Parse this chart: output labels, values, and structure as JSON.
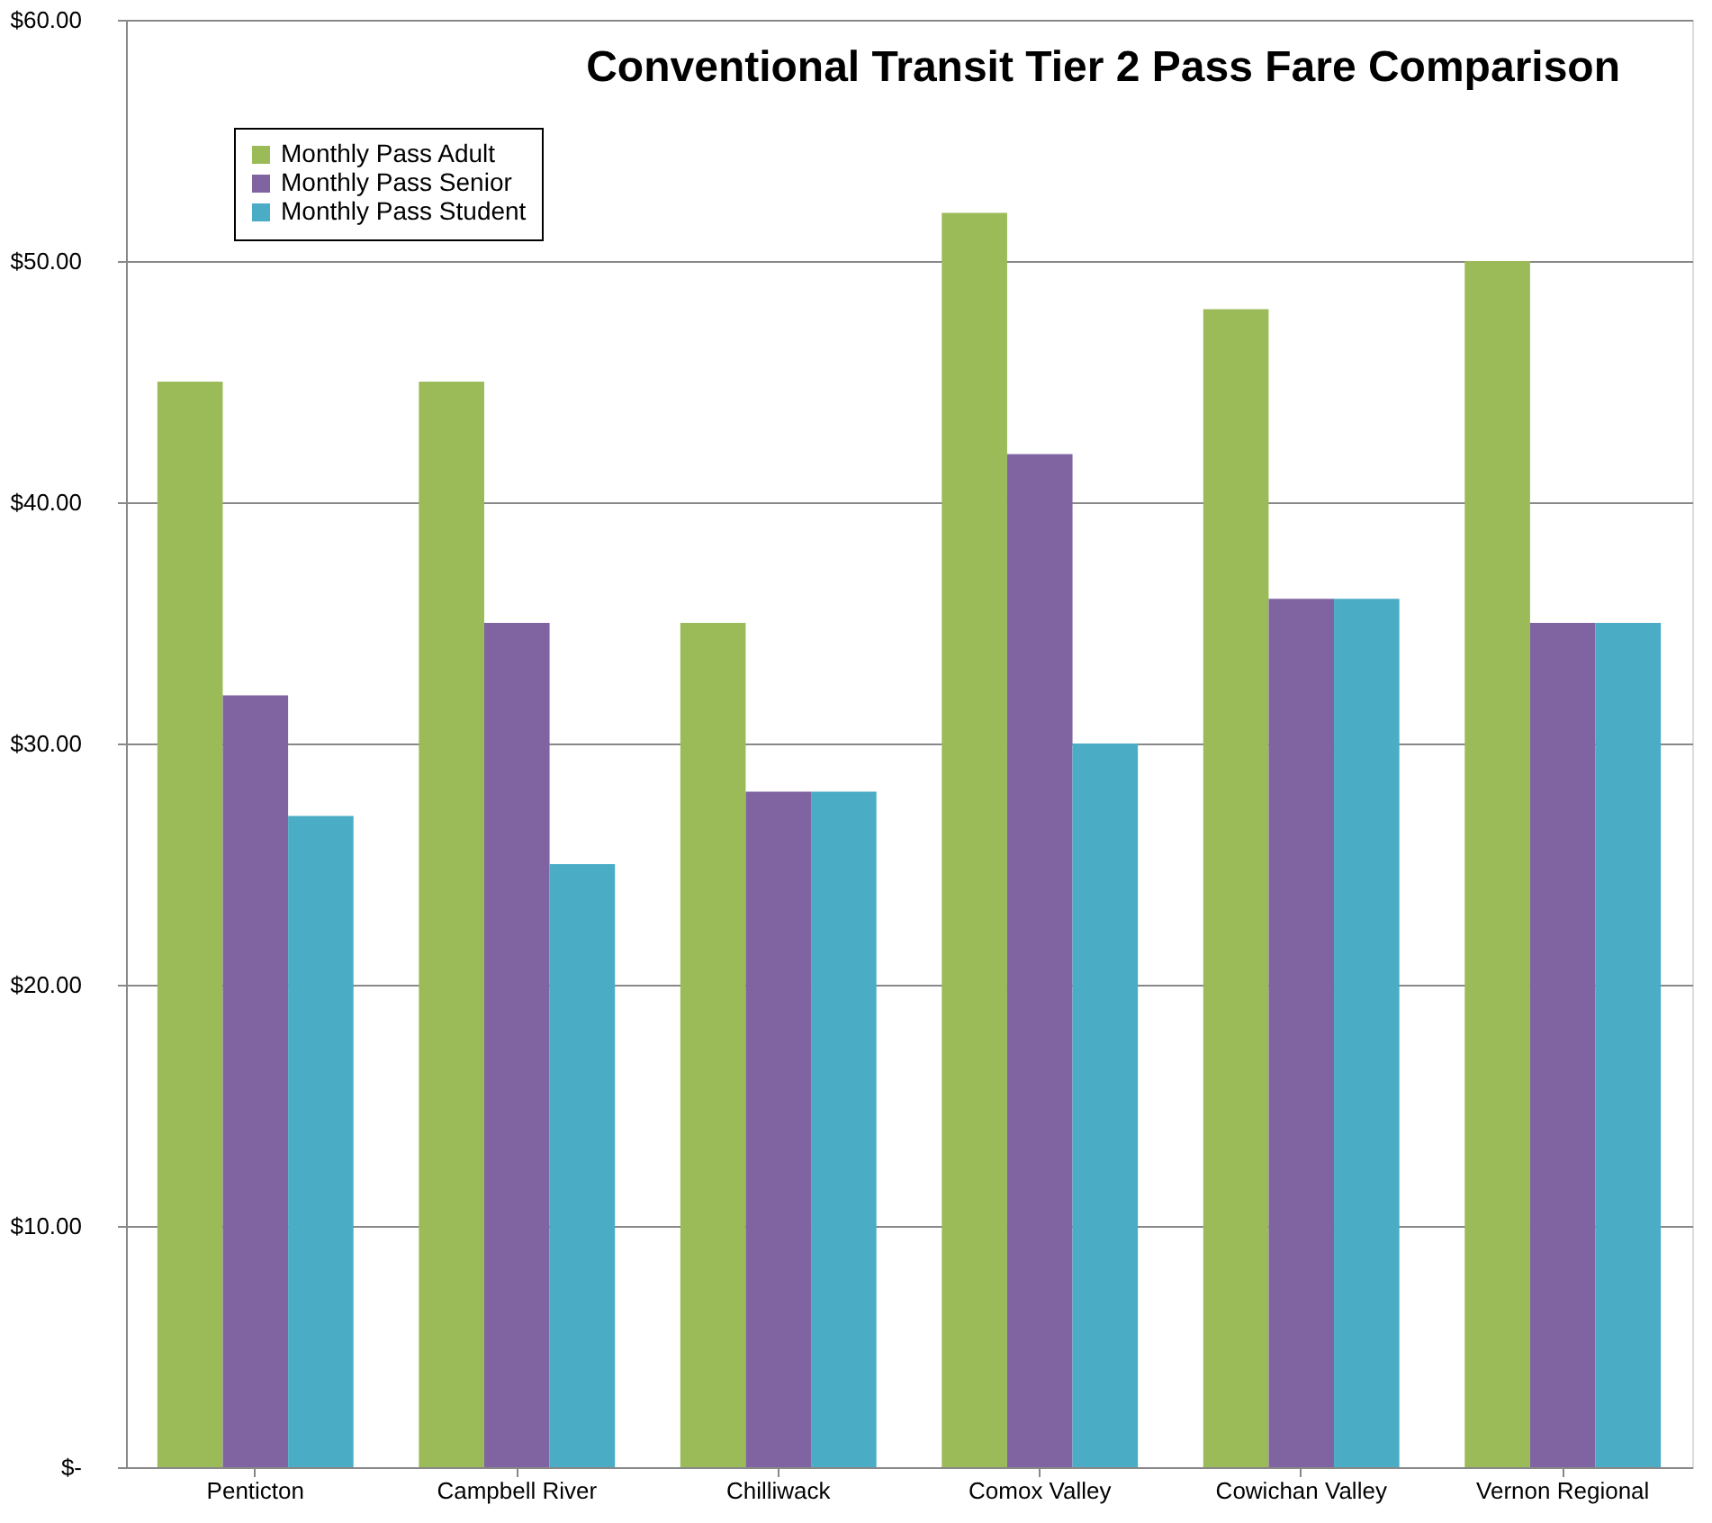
{
  "chart_data": {
    "type": "bar",
    "title": "Conventional Transit Tier 2 Pass Fare Comparison",
    "categories": [
      "Penticton",
      "Campbell River",
      "Chilliwack",
      "Comox Valley",
      "Cowichan Valley",
      "Vernon Regional"
    ],
    "series": [
      {
        "name": "Monthly Pass Adult",
        "color": "#9bbb59",
        "values": [
          45,
          45,
          35,
          52,
          48,
          50
        ]
      },
      {
        "name": "Monthly Pass Senior",
        "color": "#8064a2",
        "values": [
          32,
          35,
          28,
          42,
          36,
          35
        ]
      },
      {
        "name": "Monthly Pass Student",
        "color": "#4bacc6",
        "values": [
          27,
          25,
          28,
          30,
          36,
          35
        ]
      }
    ],
    "ylim": [
      0,
      60
    ],
    "yticks": [
      {
        "value": 0,
        "label": "$-"
      },
      {
        "value": 10,
        "label": "$10.00"
      },
      {
        "value": 20,
        "label": "$20.00"
      },
      {
        "value": 30,
        "label": "$30.00"
      },
      {
        "value": 40,
        "label": "$40.00"
      },
      {
        "value": 50,
        "label": "$50.00"
      },
      {
        "value": 60,
        "label": "$60.00"
      }
    ],
    "grid": "y",
    "legend": "top left"
  }
}
